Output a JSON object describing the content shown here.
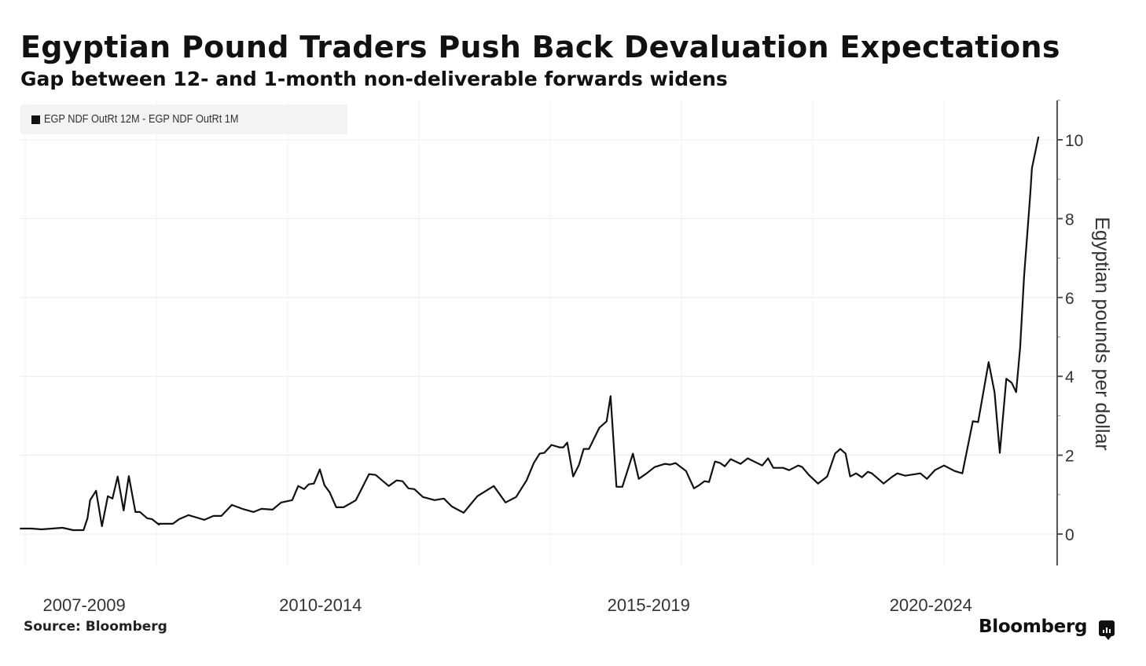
{
  "header": {
    "title": "Egyptian Pound Traders Push Back Devaluation Expectations",
    "subtitle": "Gap between 12- and 1-month non-deliverable forwards widens"
  },
  "legend": {
    "label": "EGP NDF OutRt 12M - EGP NDF OutRt 1M",
    "color": "#111111"
  },
  "footer": {
    "source": "Source: Bloomberg",
    "brand": "Bloomberg",
    "brand_icon": "bloomberg-logo-icon"
  },
  "chart_data": {
    "type": "line",
    "title": "Egyptian Pound Traders Push Back Devaluation Expectations",
    "subtitle": "Gap between 12- and 1-month non-deliverable forwards widens",
    "xlabel": "",
    "ylabel": "Egyptian pounds per dollar",
    "x_tick_labels": [
      {
        "label": "2007-2009",
        "x": 2008.9
      },
      {
        "label": "2010-2014",
        "x": 2012.5
      },
      {
        "label": "2015-2019",
        "x": 2017.5
      },
      {
        "label": "2020-2024",
        "x": 2021.8
      }
    ],
    "y_ticks": [
      0,
      2,
      4,
      6,
      8,
      10
    ],
    "ylim": [
      -0.8,
      11
    ],
    "xlim": [
      2007.9,
      2023.9
    ],
    "y_axis_position": "right",
    "grid": true,
    "legend_position": "top-left",
    "series": [
      {
        "name": "EGP NDF OutRt 12M - EGP NDF OutRt 1M",
        "color": "#111111",
        "points": [
          [
            2007.92,
            0.14
          ],
          [
            2008.1,
            0.14
          ],
          [
            2008.25,
            0.12
          ],
          [
            2008.57,
            0.16
          ],
          [
            2008.73,
            0.1
          ],
          [
            2008.89,
            0.1
          ],
          [
            2008.95,
            0.4
          ],
          [
            2008.99,
            0.86
          ],
          [
            2009.08,
            1.1
          ],
          [
            2009.17,
            0.2
          ],
          [
            2009.26,
            0.96
          ],
          [
            2009.33,
            0.9
          ],
          [
            2009.41,
            1.46
          ],
          [
            2009.5,
            0.6
          ],
          [
            2009.58,
            1.47
          ],
          [
            2009.68,
            0.56
          ],
          [
            2009.75,
            0.56
          ],
          [
            2009.86,
            0.4
          ],
          [
            2009.93,
            0.38
          ],
          [
            2010.04,
            0.24
          ],
          [
            2010.02,
            0.26
          ],
          [
            2010.25,
            0.26
          ],
          [
            2010.35,
            0.38
          ],
          [
            2010.49,
            0.48
          ],
          [
            2010.73,
            0.36
          ],
          [
            2010.87,
            0.46
          ],
          [
            2010.99,
            0.46
          ],
          [
            2011.15,
            0.74
          ],
          [
            2011.31,
            0.64
          ],
          [
            2011.48,
            0.56
          ],
          [
            2011.6,
            0.64
          ],
          [
            2011.77,
            0.62
          ],
          [
            2011.9,
            0.8
          ],
          [
            2012.07,
            0.86
          ],
          [
            2012.16,
            1.22
          ],
          [
            2012.25,
            1.14
          ],
          [
            2012.32,
            1.26
          ],
          [
            2012.4,
            1.28
          ],
          [
            2012.49,
            1.64
          ],
          [
            2012.56,
            1.24
          ],
          [
            2012.64,
            1.06
          ],
          [
            2012.74,
            0.68
          ],
          [
            2012.85,
            0.68
          ],
          [
            2012.98,
            0.8
          ],
          [
            2013.04,
            0.86
          ],
          [
            2013.24,
            1.52
          ],
          [
            2013.34,
            1.5
          ],
          [
            2013.54,
            1.22
          ],
          [
            2013.66,
            1.36
          ],
          [
            2013.75,
            1.34
          ],
          [
            2013.84,
            1.16
          ],
          [
            2013.93,
            1.14
          ],
          [
            2014.06,
            0.94
          ],
          [
            2014.24,
            0.86
          ],
          [
            2014.38,
            0.9
          ],
          [
            2014.5,
            0.7
          ],
          [
            2014.68,
            0.54
          ],
          [
            2014.89,
            0.96
          ],
          [
            2015.14,
            1.22
          ],
          [
            2015.32,
            0.8
          ],
          [
            2015.48,
            0.94
          ],
          [
            2015.64,
            1.36
          ],
          [
            2015.75,
            1.8
          ],
          [
            2015.84,
            2.04
          ],
          [
            2015.91,
            2.06
          ],
          [
            2016.02,
            2.26
          ],
          [
            2016.14,
            2.2
          ],
          [
            2016.2,
            2.2
          ],
          [
            2016.26,
            2.32
          ],
          [
            2016.35,
            1.46
          ],
          [
            2016.44,
            1.76
          ],
          [
            2016.51,
            2.16
          ],
          [
            2016.59,
            2.16
          ],
          [
            2016.75,
            2.7
          ],
          [
            2016.86,
            2.86
          ],
          [
            2016.92,
            3.5
          ],
          [
            2017.01,
            1.2
          ],
          [
            2017.1,
            1.2
          ],
          [
            2017.26,
            2.04
          ],
          [
            2017.35,
            1.4
          ],
          [
            2017.47,
            1.54
          ],
          [
            2017.59,
            1.7
          ],
          [
            2017.75,
            1.78
          ],
          [
            2017.83,
            1.76
          ],
          [
            2017.91,
            1.8
          ],
          [
            2018.07,
            1.6
          ],
          [
            2018.19,
            1.16
          ],
          [
            2018.27,
            1.24
          ],
          [
            2018.35,
            1.34
          ],
          [
            2018.42,
            1.32
          ],
          [
            2018.51,
            1.84
          ],
          [
            2018.59,
            1.8
          ],
          [
            2018.66,
            1.72
          ],
          [
            2018.75,
            1.9
          ],
          [
            2018.9,
            1.78
          ],
          [
            2019.01,
            1.92
          ],
          [
            2019.23,
            1.74
          ],
          [
            2019.32,
            1.92
          ],
          [
            2019.4,
            1.68
          ],
          [
            2019.55,
            1.68
          ],
          [
            2019.64,
            1.62
          ],
          [
            2019.78,
            1.74
          ],
          [
            2019.84,
            1.7
          ],
          [
            2019.94,
            1.5
          ],
          [
            2020.08,
            1.28
          ],
          [
            2020.22,
            1.46
          ],
          [
            2020.34,
            2.04
          ],
          [
            2020.42,
            2.16
          ],
          [
            2020.5,
            2.04
          ],
          [
            2020.57,
            1.46
          ],
          [
            2020.66,
            1.54
          ],
          [
            2020.75,
            1.44
          ],
          [
            2020.84,
            1.58
          ],
          [
            2020.9,
            1.54
          ],
          [
            2021.08,
            1.28
          ],
          [
            2021.2,
            1.44
          ],
          [
            2021.29,
            1.54
          ],
          [
            2021.41,
            1.48
          ],
          [
            2021.64,
            1.54
          ],
          [
            2021.74,
            1.4
          ],
          [
            2021.86,
            1.62
          ],
          [
            2022.0,
            1.74
          ],
          [
            2022.16,
            1.6
          ],
          [
            2022.28,
            1.54
          ],
          [
            2022.44,
            2.86
          ],
          [
            2022.52,
            2.84
          ],
          [
            2022.68,
            4.36
          ],
          [
            2022.77,
            3.6
          ],
          [
            2022.85,
            2.06
          ],
          [
            2022.95,
            3.94
          ],
          [
            2023.03,
            3.84
          ],
          [
            2023.1,
            3.6
          ],
          [
            2023.16,
            4.74
          ],
          [
            2023.22,
            6.54
          ],
          [
            2023.31,
            8.52
          ],
          [
            2023.34,
            9.28
          ],
          [
            2023.44,
            10.08
          ]
        ]
      }
    ]
  }
}
